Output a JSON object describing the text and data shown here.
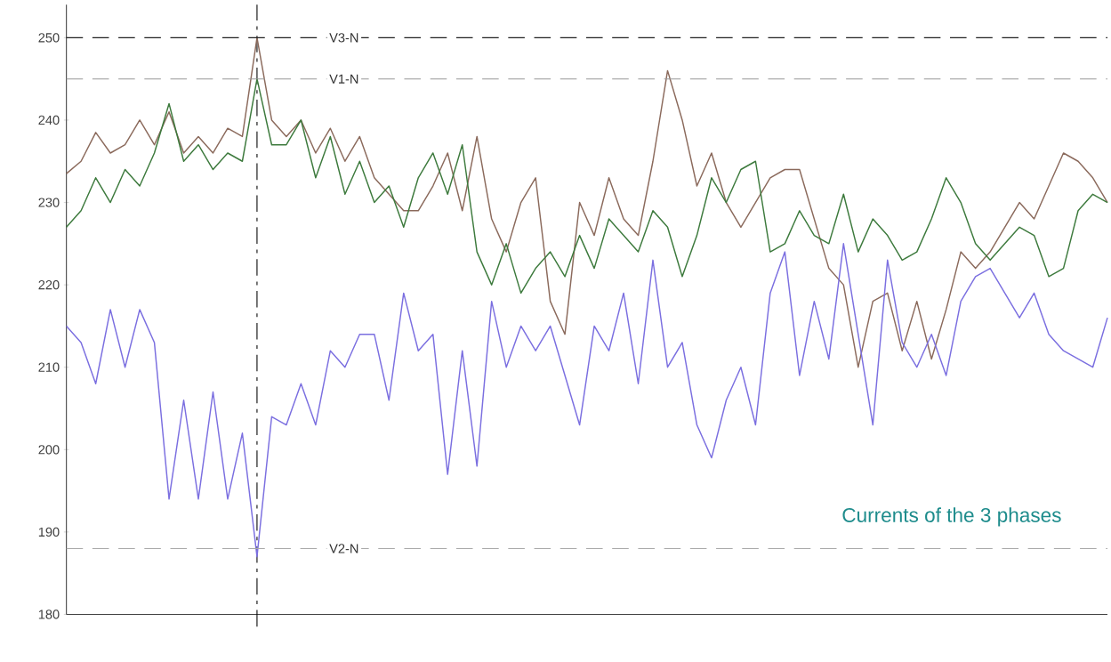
{
  "chart_data": {
    "type": "line",
    "categories": [
      null,
      null,
      null,
      null,
      null,
      null,
      null,
      null,
      null,
      null,
      null,
      null,
      null,
      null,
      null,
      null,
      null,
      null,
      null,
      null,
      null,
      null,
      null,
      null,
      null,
      null,
      null,
      null,
      null,
      null,
      null,
      null,
      null,
      null,
      null,
      null,
      null,
      null,
      null,
      null,
      null,
      null,
      null,
      null,
      null,
      null,
      null,
      null,
      null,
      null,
      null,
      null,
      null,
      null,
      null,
      null,
      null,
      null,
      null,
      null,
      null,
      null,
      null,
      null,
      null,
      null,
      null,
      null,
      null,
      null,
      null,
      null
    ],
    "ylim": [
      180,
      254
    ],
    "yticks": [
      180,
      190,
      200,
      210,
      220,
      230,
      240,
      250
    ],
    "line_style": "solid",
    "marker": "none",
    "series": [
      {
        "color": "#8b6a5c",
        "values": [
          233.5,
          235,
          238.5,
          236,
          237,
          240,
          237,
          241,
          236,
          238,
          236,
          239,
          238,
          250,
          240,
          238,
          240,
          236,
          239,
          235,
          238,
          233,
          231,
          229,
          229,
          232,
          236,
          229,
          238,
          228,
          224,
          230,
          233,
          218,
          214,
          230,
          226,
          233,
          228,
          226,
          235,
          246,
          240,
          232,
          236,
          230,
          227,
          230,
          233,
          234,
          234,
          228,
          222,
          220,
          210,
          218,
          219,
          212,
          218,
          211,
          217,
          224,
          222,
          224,
          227,
          230,
          228,
          232,
          236,
          235,
          233,
          230
        ]
      },
      {
        "color": "#3d7a3d",
        "values": [
          227,
          229,
          233,
          230,
          234,
          232,
          236,
          242,
          235,
          237,
          234,
          236,
          235,
          245,
          237,
          237,
          240,
          233,
          238,
          231,
          235,
          230,
          232,
          227,
          233,
          236,
          231,
          237,
          224,
          220,
          225,
          219,
          222,
          224,
          221,
          226,
          222,
          228,
          226,
          224,
          229,
          227,
          221,
          226,
          233,
          230,
          234,
          235,
          224,
          225,
          229,
          226,
          225,
          231,
          224,
          228,
          226,
          223,
          224,
          228,
          233,
          230,
          225,
          223,
          225,
          227,
          226,
          221,
          222,
          229,
          231,
          230
        ]
      },
      {
        "color": "#7b6fe0",
        "values": [
          215,
          213,
          208,
          217,
          210,
          217,
          213,
          194,
          206,
          194,
          207,
          194,
          202,
          187,
          204,
          203,
          208,
          203,
          212,
          210,
          214,
          214,
          206,
          219,
          212,
          214,
          197,
          212,
          198,
          218,
          210,
          215,
          212,
          215,
          209,
          203,
          215,
          212,
          219,
          208,
          223,
          210,
          213,
          203,
          199,
          206,
          210,
          203,
          219,
          224,
          209,
          218,
          211,
          225,
          214,
          203,
          223,
          213,
          210,
          214,
          209,
          218,
          221,
          222,
          219,
          216,
          219,
          214,
          212,
          211,
          210,
          216
        ]
      }
    ],
    "ref_lines": [
      {
        "axis": "y",
        "value": 250,
        "label": "V3-N",
        "color": "#222222",
        "line_style": "dashed"
      },
      {
        "axis": "y",
        "value": 245,
        "label": "V1-N",
        "color": "#999999",
        "line_style": "dashed"
      },
      {
        "axis": "y",
        "value": 188,
        "label": "V2-N",
        "color": "#aaaaaa",
        "line_style": "dashed"
      }
    ],
    "annotations": [
      "Currents of the 3 phases"
    ]
  }
}
